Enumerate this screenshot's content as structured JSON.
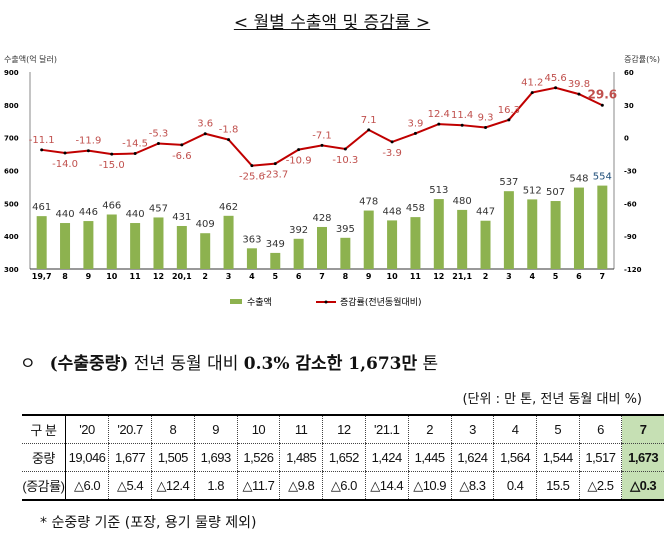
{
  "title": "< 월별 수출액 및 증감률 >",
  "chart_data": {
    "type": "bar+line",
    "categories": [
      "19,7",
      "8",
      "9",
      "10",
      "11",
      "12",
      "20,1",
      "2",
      "3",
      "4",
      "5",
      "6",
      "7",
      "8",
      "9",
      "10",
      "11",
      "12",
      "21,1",
      "2",
      "3",
      "4",
      "5",
      "6",
      "7"
    ],
    "series": [
      {
        "name": "수출액",
        "type": "bar",
        "axis": "left",
        "color": "#8db24f",
        "values": [
          461,
          440,
          446,
          466,
          440,
          457,
          431,
          409,
          462,
          363,
          349,
          392,
          428,
          395,
          478,
          448,
          458,
          513,
          480,
          447,
          537,
          512,
          507,
          548,
          554
        ]
      },
      {
        "name": "증감률(전년동월대비)",
        "type": "line",
        "axis": "right",
        "color": "#c00000",
        "values": [
          -11.1,
          -14.0,
          -11.9,
          -15.0,
          -14.5,
          -5.3,
          -6.6,
          3.6,
          -1.8,
          -25.6,
          -23.7,
          -10.9,
          -7.1,
          -10.3,
          7.1,
          -3.9,
          3.9,
          12.4,
          11.4,
          9.3,
          16.3,
          41.2,
          45.6,
          39.8,
          29.6
        ]
      }
    ],
    "ylabel_left": "수출액(억 달러)",
    "ylim_left": [
      300,
      900
    ],
    "yticks_left": [
      300,
      400,
      500,
      600,
      700,
      800,
      900
    ],
    "ylabel_right": "증감률(%)",
    "ylim_right": [
      -120,
      60
    ],
    "yticks_right": [
      -120,
      -90,
      -60,
      -30,
      0,
      30,
      60
    ],
    "legend": "bottom"
  },
  "headline": {
    "bullet": "ㅇ",
    "part1": "(수출중량)",
    "part2": " 전년 동월 대비 ",
    "part3": "0.3%",
    "part4": " 감소한 ",
    "part5": "1,673만",
    "part6": " 톤"
  },
  "unit": "(단위 : 만 톤, 전년 동월 대비 %)",
  "table": {
    "header": [
      "구  분",
      "'20",
      "'20.7",
      "8",
      "9",
      "10",
      "11",
      "12",
      "'21.1",
      "2",
      "3",
      "4",
      "5",
      "6",
      "7"
    ],
    "rows": [
      [
        "중량",
        "19,046",
        "1,677",
        "1,505",
        "1,693",
        "1,526",
        "1,485",
        "1,652",
        "1,424",
        "1,445",
        "1,624",
        "1,564",
        "1,544",
        "1,517",
        "1,673"
      ],
      [
        "(증감률)",
        "△6.0",
        "△5.4",
        "△12.4",
        "1.8",
        "△11.7",
        "△9.8",
        "△6.0",
        "△14.4",
        "△10.9",
        "△8.3",
        "0.4",
        "15.5",
        "△2.5",
        "△0.3"
      ]
    ]
  },
  "note": "* 순중량 기준 (포장, 용기 물량 제외)"
}
